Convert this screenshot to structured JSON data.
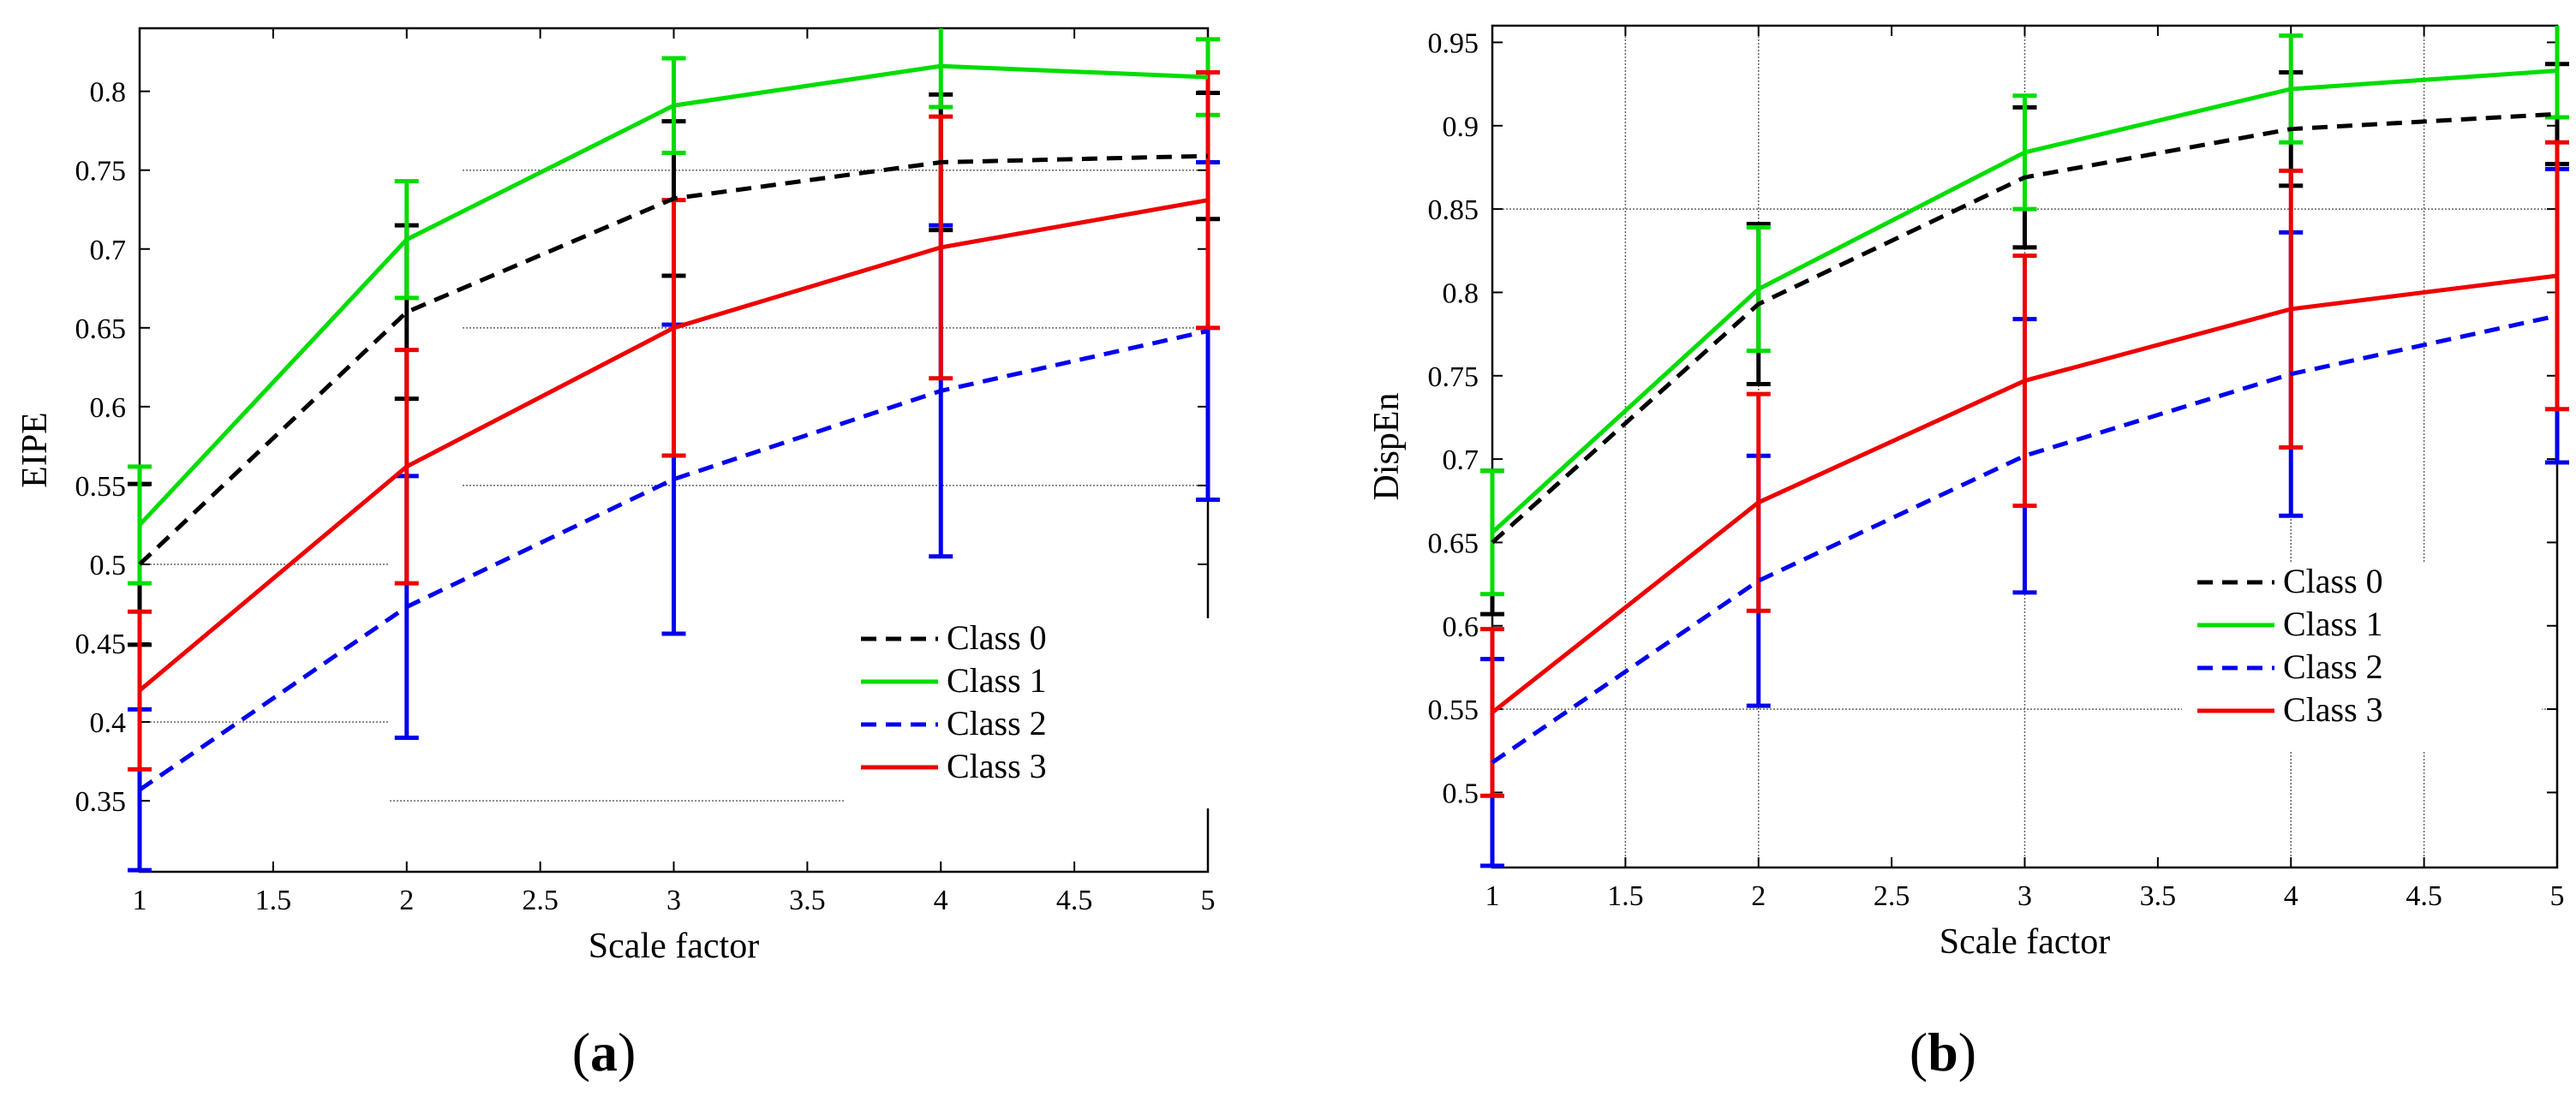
{
  "chart_data": [
    {
      "type": "line",
      "panel_label": "a",
      "xlabel": "Scale factor",
      "ylabel": "EIPE",
      "xlim": [
        1,
        5
      ],
      "ylim": [
        0.305,
        0.84
      ],
      "xticks": [
        1,
        1.5,
        2,
        2.5,
        3,
        3.5,
        4,
        4.5,
        5
      ],
      "yticks": [
        0.35,
        0.4,
        0.45,
        0.5,
        0.55,
        0.6,
        0.65,
        0.7,
        0.75,
        0.8
      ],
      "legend_placement": "lower-right",
      "x": [
        1,
        2,
        3,
        4,
        5
      ],
      "series": [
        {
          "name": "Class 0",
          "color": "#000000",
          "dash": "dashed",
          "values": [
            0.5,
            0.66,
            0.732,
            0.755,
            0.759
          ],
          "err": [
            0.051,
            0.055,
            0.049,
            0.043,
            0.04
          ]
        },
        {
          "name": "Class 1",
          "color": "#00dd00",
          "dash": "solid",
          "values": [
            0.525,
            0.706,
            0.791,
            0.816,
            0.809
          ],
          "err": [
            0.037,
            0.037,
            0.03,
            0.026,
            0.024
          ]
        },
        {
          "name": "Class 2",
          "color": "#0000ee",
          "dash": "dashed",
          "values": [
            0.357,
            0.473,
            0.554,
            0.61,
            0.648
          ],
          "err": [
            0.051,
            0.083,
            0.098,
            0.105,
            0.107
          ]
        },
        {
          "name": "Class 3",
          "color": "#ee0000",
          "dash": "solid",
          "values": [
            0.42,
            0.562,
            0.65,
            0.701,
            0.731
          ],
          "err": [
            0.05,
            0.074,
            0.081,
            0.083,
            0.081
          ]
        }
      ]
    },
    {
      "type": "line",
      "panel_label": "b",
      "xlabel": "Scale factor",
      "ylabel": "DispEn",
      "xlim": [
        1,
        5
      ],
      "ylim": [
        0.455,
        0.96
      ],
      "xticks": [
        1,
        1.5,
        2,
        2.5,
        3,
        3.5,
        4,
        4.5,
        5
      ],
      "yticks": [
        0.5,
        0.55,
        0.6,
        0.65,
        0.7,
        0.75,
        0.8,
        0.85,
        0.9,
        0.95
      ],
      "legend_placement": "lower-right",
      "x": [
        1,
        2,
        3,
        4,
        5
      ],
      "series": [
        {
          "name": "Class 0",
          "color": "#000000",
          "dash": "dashed",
          "values": [
            0.65,
            0.793,
            0.869,
            0.898,
            0.907
          ],
          "err": [
            0.043,
            0.048,
            0.042,
            0.034,
            0.03
          ]
        },
        {
          "name": "Class 1",
          "color": "#00dd00",
          "dash": "solid",
          "values": [
            0.656,
            0.802,
            0.884,
            0.922,
            0.933
          ],
          "err": [
            0.037,
            0.037,
            0.034,
            0.032,
            0.028
          ]
        },
        {
          "name": "Class 2",
          "color": "#0000ee",
          "dash": "dashed",
          "values": [
            0.518,
            0.627,
            0.702,
            0.751,
            0.786
          ],
          "err": [
            0.062,
            0.075,
            0.082,
            0.085,
            0.088
          ]
        },
        {
          "name": "Class 3",
          "color": "#ee0000",
          "dash": "solid",
          "values": [
            0.548,
            0.674,
            0.747,
            0.79,
            0.81
          ],
          "err": [
            0.05,
            0.065,
            0.075,
            0.083,
            0.08
          ]
        }
      ]
    }
  ]
}
